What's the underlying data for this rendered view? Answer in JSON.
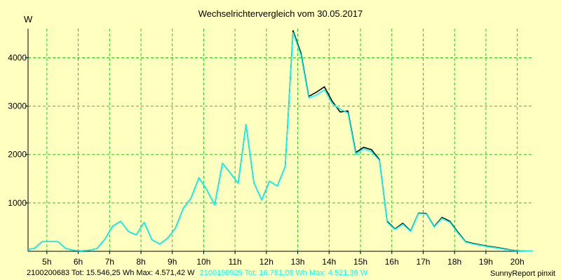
{
  "chart_data": {
    "type": "line",
    "title": "Wechselrichtervergleich vom 30.05.2017",
    "ylabel": "W",
    "xlabel": "",
    "xlim": [
      4.4,
      20.5
    ],
    "ylim": [
      0,
      4600
    ],
    "y_ticks": [
      1000,
      2000,
      3000,
      4000
    ],
    "y_tick_labels": [
      "1000",
      "2000",
      "3000",
      "4000"
    ],
    "x_ticks": [
      5,
      6,
      7,
      8,
      9,
      10,
      11,
      12,
      13,
      14,
      15,
      16,
      17,
      18,
      19,
      20
    ],
    "x_tick_labels": [
      "5h",
      "6h",
      "7h",
      "8h",
      "9h",
      "10h",
      "11h",
      "12h",
      "13h",
      "14h",
      "15h",
      "16h",
      "17h",
      "18h",
      "19h",
      "20h"
    ],
    "grid": true,
    "grid_color": "#22cc22",
    "plot_background": "#ffffc0",
    "series": [
      {
        "color": "#000000",
        "x": [
          4.4,
          4.6,
          4.85,
          5.1,
          5.35,
          5.6,
          5.85,
          6.1,
          6.35,
          6.6,
          6.85,
          7.1,
          7.35,
          7.6,
          7.85,
          8.1,
          8.35,
          8.6,
          8.85,
          9.1,
          9.35,
          9.6,
          9.85,
          10.1,
          10.35,
          10.6,
          10.85,
          11.1,
          11.35,
          11.6,
          11.85,
          12.1,
          12.35,
          12.6,
          12.85,
          13.1,
          13.35,
          13.6,
          13.85,
          14.1,
          14.35,
          14.6,
          14.85,
          15.1,
          15.35,
          15.6,
          15.85,
          16.1,
          16.35,
          16.6,
          16.85,
          17.1,
          17.35,
          17.6,
          17.85,
          18.1,
          18.35,
          18.6,
          18.85,
          19.1,
          19.35,
          19.6,
          19.85,
          20.1,
          20.35,
          20.5
        ],
        "values": [
          40,
          60,
          200,
          200,
          200,
          60,
          20,
          10,
          20,
          60,
          250,
          520,
          620,
          410,
          340,
          600,
          240,
          150,
          270,
          480,
          890,
          1100,
          1520,
          1270,
          960,
          1820,
          1620,
          1400,
          2620,
          1420,
          1060,
          1450,
          1350,
          1750,
          4560,
          4100,
          3200,
          3290,
          3400,
          3100,
          2880,
          2900,
          2040,
          2150,
          2100,
          1900,
          620,
          460,
          580,
          420,
          790,
          780,
          510,
          700,
          620,
          400,
          200,
          160,
          130,
          100,
          80,
          50,
          20,
          10,
          5,
          5
        ]
      },
      {
        "color": "#00ffff",
        "x": [
          4.4,
          4.6,
          4.85,
          5.1,
          5.35,
          5.6,
          5.85,
          6.1,
          6.35,
          6.6,
          6.85,
          7.1,
          7.35,
          7.6,
          7.85,
          8.1,
          8.35,
          8.6,
          8.85,
          9.1,
          9.35,
          9.6,
          9.85,
          10.1,
          10.35,
          10.6,
          10.85,
          11.1,
          11.35,
          11.6,
          11.85,
          12.1,
          12.35,
          12.6,
          12.85,
          13.1,
          13.35,
          13.6,
          13.85,
          14.1,
          14.35,
          14.6,
          14.85,
          15.1,
          15.35,
          15.6,
          15.85,
          16.1,
          16.35,
          16.6,
          16.85,
          17.1,
          17.35,
          17.6,
          17.85,
          18.1,
          18.35,
          18.6,
          18.85,
          19.1,
          19.35,
          19.6,
          19.85,
          20.1,
          20.35,
          20.5
        ],
        "values": [
          40,
          60,
          200,
          200,
          200,
          60,
          20,
          10,
          20,
          60,
          250,
          520,
          620,
          410,
          340,
          600,
          240,
          150,
          270,
          480,
          890,
          1100,
          1520,
          1270,
          960,
          1820,
          1620,
          1400,
          2620,
          1420,
          1060,
          1450,
          1350,
          1750,
          4520,
          4050,
          3170,
          3230,
          3340,
          3050,
          2940,
          2860,
          2000,
          2120,
          2060,
          1880,
          600,
          450,
          560,
          410,
          780,
          770,
          500,
          680,
          600,
          380,
          190,
          150,
          120,
          90,
          70,
          40,
          15,
          8,
          5,
          5
        ]
      }
    ]
  },
  "footer": {
    "series1_text": "2100200683 Tot: 15.546,25 Wh Max: 4.571,42 W",
    "series2_text": "2100198925 Tot: 16.781,08 Wh Max: 4.521,36 W",
    "series1_color": "#000000",
    "series2_color": "#00ffff",
    "credit": "SunnyReport pinxit"
  }
}
